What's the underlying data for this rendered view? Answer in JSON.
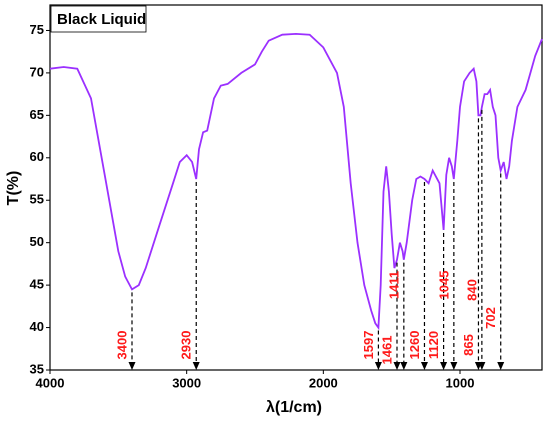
{
  "chart_data": {
    "type": "line",
    "title": "Black Liquid",
    "xlabel": "λ(1/cm)",
    "ylabel": "T(%)",
    "xlim": [
      4000,
      400
    ],
    "ylim": [
      35,
      78
    ],
    "xticks": [
      4000,
      3000,
      2000,
      1000
    ],
    "yticks": [
      35,
      40,
      45,
      50,
      55,
      60,
      65,
      70,
      75
    ],
    "series": [
      {
        "name": "Black Liquid",
        "color": "#9b30ff",
        "x": [
          4000,
          3900,
          3800,
          3700,
          3600,
          3500,
          3450,
          3400,
          3350,
          3300,
          3200,
          3100,
          3050,
          3000,
          2960,
          2930,
          2910,
          2880,
          2850,
          2800,
          2750,
          2700,
          2600,
          2500,
          2450,
          2400,
          2300,
          2200,
          2100,
          2000,
          1900,
          1850,
          1800,
          1750,
          1700,
          1650,
          1620,
          1597,
          1580,
          1560,
          1540,
          1520,
          1500,
          1480,
          1461,
          1440,
          1420,
          1411,
          1390,
          1350,
          1320,
          1290,
          1260,
          1230,
          1200,
          1150,
          1120,
          1100,
          1080,
          1060,
          1045,
          1020,
          1000,
          970,
          930,
          900,
          880,
          865,
          850,
          840,
          820,
          800,
          780,
          760,
          740,
          720,
          702,
          680,
          660,
          640,
          620,
          580,
          520,
          450,
          400
        ],
        "values": [
          70.5,
          70.7,
          70.5,
          67,
          58,
          49,
          46,
          44.5,
          45,
          47,
          52,
          57,
          59.5,
          60.3,
          59.5,
          57.5,
          61,
          63,
          63.2,
          67,
          68.5,
          68.7,
          70,
          71,
          72.5,
          73.8,
          74.5,
          74.6,
          74.5,
          73,
          70,
          66,
          57,
          50,
          45,
          42,
          40.5,
          40,
          45,
          56,
          59,
          56,
          51,
          47,
          48,
          50,
          49,
          48,
          50,
          55,
          57.5,
          57.8,
          57.5,
          57,
          58.5,
          57,
          51.5,
          58,
          60,
          59,
          57.5,
          62,
          66,
          69,
          70,
          70.5,
          69,
          65,
          65,
          66,
          67.5,
          67.5,
          68,
          66,
          65,
          60,
          58.5,
          59.5,
          57.5,
          59,
          62,
          66,
          68,
          72,
          74
        ]
      }
    ],
    "markers": [
      3400,
      2930,
      1597,
      1461,
      1411,
      1260,
      1120,
      1045,
      865,
      840,
      702
    ]
  }
}
